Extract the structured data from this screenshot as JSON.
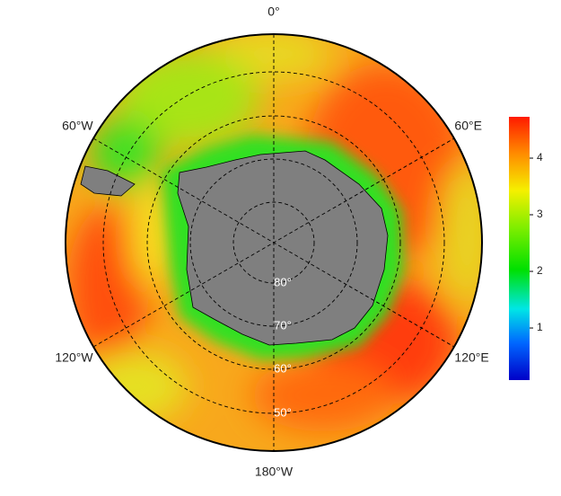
{
  "map": {
    "longitude_labels": [
      "0°",
      "60°E",
      "120°E",
      "180°W",
      "120°W",
      "60°W"
    ],
    "latitude_labels": [
      "80°",
      "70°",
      "60°",
      "50°"
    ]
  },
  "colorbar": {
    "range": [
      0.08,
      4.73
    ],
    "ticks": [
      1,
      2,
      3,
      4
    ]
  }
}
